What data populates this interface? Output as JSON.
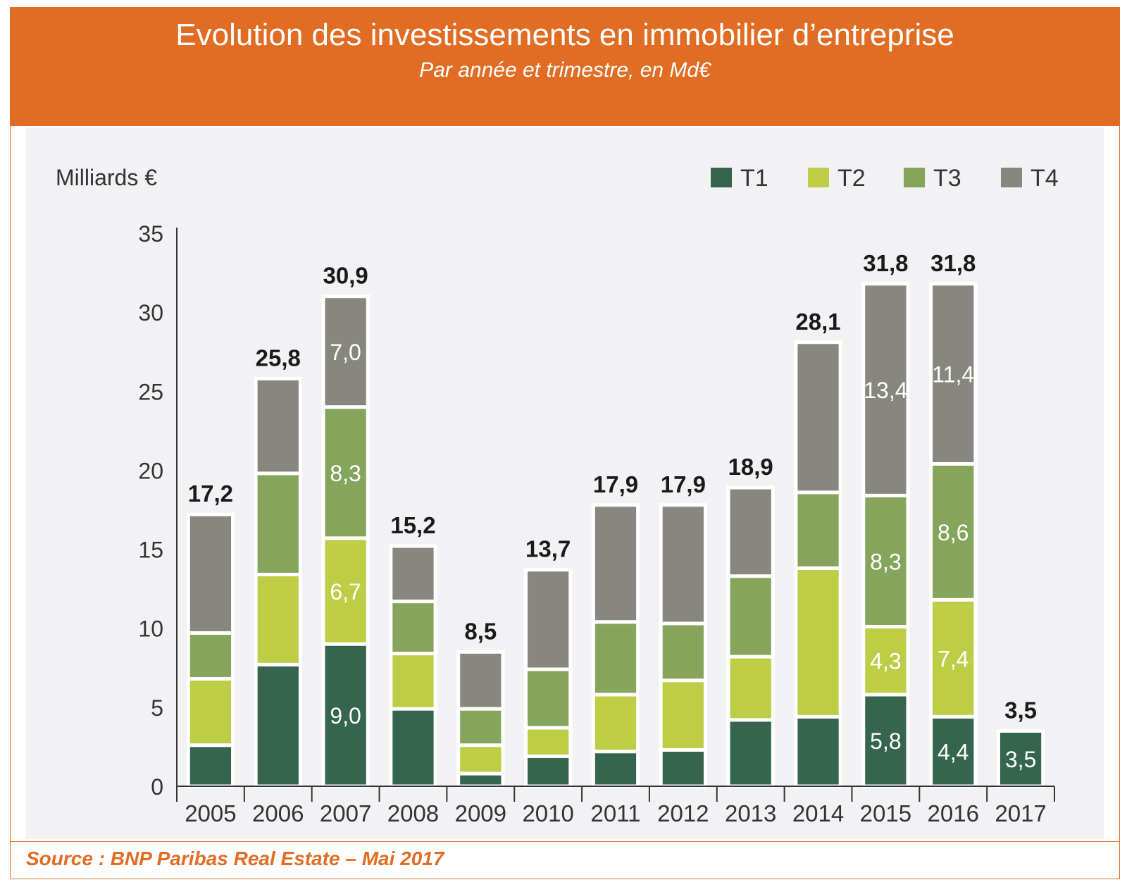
{
  "header": {
    "title": "Evolution des investissements en immobilier d’entreprise",
    "subtitle": "Par année et trimestre, en Md€"
  },
  "footer": {
    "source": "Source : BNP Paribas Real Estate – Mai 2017"
  },
  "colors": {
    "header_bg": "#e06d23",
    "plot_bg": "#f2f2f4",
    "T1": "#35654f",
    "T2": "#bdcd45",
    "T3": "#86a55c",
    "T4": "#878780"
  },
  "chart_data": {
    "type": "bar",
    "stacked": true,
    "ylabel": "Milliards €",
    "ylim": [
      0,
      35
    ],
    "yticks": [
      0,
      5,
      10,
      15,
      20,
      25,
      30,
      35
    ],
    "legend_position": "top-right",
    "grid": false,
    "categories": [
      "2005",
      "2006",
      "2007",
      "2008",
      "2009",
      "2010",
      "2011",
      "2012",
      "2013",
      "2014",
      "2015",
      "2016",
      "2017"
    ],
    "series": [
      {
        "name": "T1",
        "color": "#35654f",
        "values": [
          2.6,
          7.7,
          9.0,
          4.9,
          0.8,
          1.9,
          2.2,
          2.3,
          4.2,
          4.4,
          5.8,
          4.4,
          3.5
        ]
      },
      {
        "name": "T2",
        "color": "#bdcd45",
        "values": [
          4.2,
          5.7,
          6.7,
          3.5,
          1.8,
          1.8,
          3.6,
          4.4,
          4.0,
          9.4,
          4.3,
          7.4,
          null
        ]
      },
      {
        "name": "T3",
        "color": "#86a55c",
        "values": [
          2.9,
          6.4,
          8.3,
          3.3,
          2.3,
          3.7,
          4.6,
          3.6,
          5.1,
          4.8,
          8.3,
          8.6,
          null
        ]
      },
      {
        "name": "T4",
        "color": "#878780",
        "values": [
          7.5,
          6.0,
          7.0,
          3.5,
          3.6,
          6.3,
          7.4,
          7.5,
          5.6,
          9.5,
          13.4,
          11.4,
          null
        ]
      }
    ],
    "totals": [
      "17,2",
      "25,8",
      "30,9",
      "15,2",
      "8,5",
      "13,7",
      "17,9",
      "17,9",
      "18,9",
      "28,1",
      "31,8",
      "31,8",
      "3,5"
    ],
    "segment_labels": [
      {
        "category": "2007",
        "series": "T1",
        "label": "9,0"
      },
      {
        "category": "2007",
        "series": "T2",
        "label": "6,7"
      },
      {
        "category": "2007",
        "series": "T3",
        "label": "8,3"
      },
      {
        "category": "2007",
        "series": "T4",
        "label": "7,0"
      },
      {
        "category": "2015",
        "series": "T1",
        "label": "5,8"
      },
      {
        "category": "2015",
        "series": "T2",
        "label": "4,3"
      },
      {
        "category": "2015",
        "series": "T3",
        "label": "8,3"
      },
      {
        "category": "2015",
        "series": "T4",
        "label": "13,4"
      },
      {
        "category": "2016",
        "series": "T1",
        "label": "4,4"
      },
      {
        "category": "2016",
        "series": "T2",
        "label": "7,4"
      },
      {
        "category": "2016",
        "series": "T3",
        "label": "8,6"
      },
      {
        "category": "2016",
        "series": "T4",
        "label": "11,4"
      },
      {
        "category": "2017",
        "series": "T1",
        "label": "3,5"
      }
    ]
  }
}
